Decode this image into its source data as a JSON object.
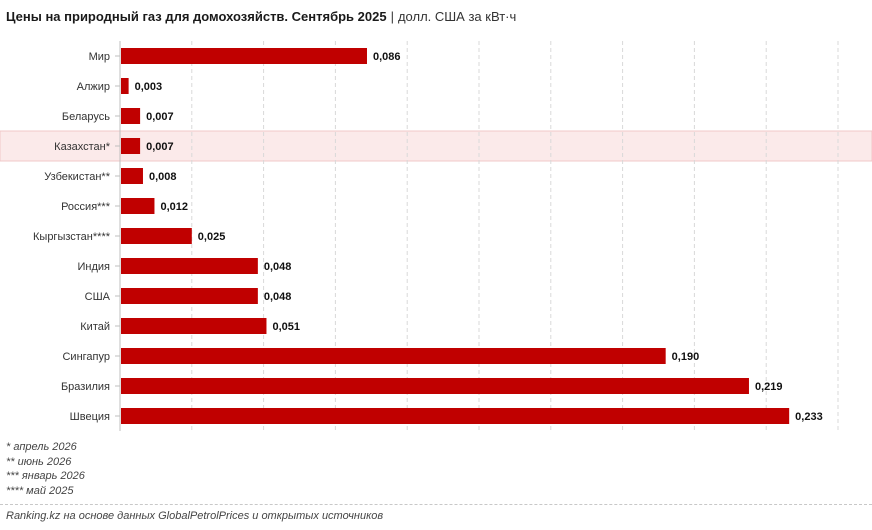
{
  "title": {
    "main": "Цены на природный газ для домохозяйств. Сентябрь 2025",
    "separator": "|",
    "unit": "долл. США за кВт·ч"
  },
  "chart_data": {
    "type": "bar",
    "orientation": "horizontal",
    "categories": [
      "Мир",
      "Алжир",
      "Беларусь",
      "Казахстан*",
      "Узбекистан**",
      "Россия***",
      "Кыргызстан****",
      "Индия",
      "США",
      "Китай",
      "Сингапур",
      "Бразилия",
      "Швеция"
    ],
    "values": [
      0.086,
      0.003,
      0.007,
      0.007,
      0.008,
      0.012,
      0.025,
      0.048,
      0.048,
      0.051,
      0.19,
      0.219,
      0.233
    ],
    "value_labels": [
      "0,086",
      "0,003",
      "0,007",
      "0,007",
      "0,008",
      "0,012",
      "0,025",
      "0,048",
      "0,048",
      "0,051",
      "0,190",
      "0,219",
      "0,233"
    ],
    "highlight_category": "Казахстан*",
    "xlim": [
      0,
      0.25
    ],
    "x_ticks": [
      "0,000",
      "0,025",
      "0,050",
      "0,075",
      "0,100",
      "0,125",
      "0,150",
      "0,175",
      "0,200",
      "0,225",
      "0,250"
    ],
    "grid": "vertical dashed",
    "colors": {
      "bar": "#c00000",
      "highlight_band": "#fbeaea",
      "grid": "#d9d9d9"
    }
  },
  "footnotes": [
    "* апрель 2026",
    "** июнь 2026",
    "*** январь 2026",
    "**** май 2025"
  ],
  "source": "Ranking.kz на основе данных GlobalPetrolPrices и открытых источников"
}
